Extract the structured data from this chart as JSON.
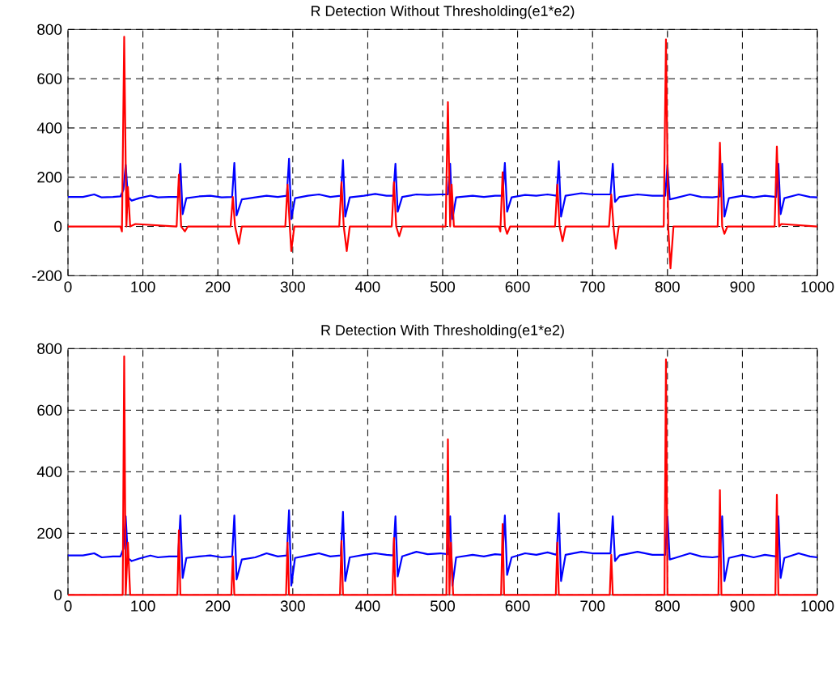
{
  "chart_data": [
    {
      "type": "line",
      "title": "R Detection Without Thresholding(e1*e2)",
      "xlim": [
        0,
        1000
      ],
      "ylim": [
        -200,
        800
      ],
      "xticks": [
        0,
        100,
        200,
        300,
        400,
        500,
        600,
        700,
        800,
        900,
        1000
      ],
      "yticks": [
        -200,
        0,
        200,
        400,
        600,
        800
      ],
      "grid": true,
      "series": [
        {
          "color": "#0000ff",
          "x": [
            0,
            20,
            35,
            45,
            60,
            70,
            74,
            77,
            80,
            85,
            95,
            110,
            120,
            135,
            147,
            150,
            153,
            158,
            175,
            190,
            205,
            219,
            222,
            225,
            232,
            250,
            265,
            280,
            292,
            295,
            298,
            303,
            320,
            335,
            350,
            364,
            367,
            370,
            376,
            395,
            410,
            425,
            434,
            437,
            440,
            446,
            465,
            480,
            497,
            507,
            510,
            513,
            518,
            540,
            555,
            570,
            580,
            583,
            586,
            592,
            610,
            625,
            640,
            652,
            655,
            658,
            664,
            685,
            700,
            715,
            724,
            727,
            730,
            736,
            760,
            780,
            797,
            800,
            803,
            810,
            830,
            845,
            860,
            870,
            873,
            876,
            882,
            900,
            915,
            930,
            945,
            948,
            951,
            956,
            975,
            990,
            1000
          ],
          "values": [
            120,
            120,
            130,
            118,
            120,
            122,
            150,
            250,
            120,
            105,
            115,
            125,
            118,
            120,
            120,
            255,
            50,
            115,
            122,
            125,
            118,
            120,
            258,
            45,
            110,
            118,
            125,
            120,
            125,
            275,
            30,
            115,
            125,
            130,
            120,
            125,
            270,
            40,
            118,
            125,
            132,
            125,
            125,
            255,
            60,
            120,
            130,
            128,
            130,
            130,
            255,
            30,
            118,
            125,
            120,
            125,
            125,
            258,
            60,
            118,
            128,
            125,
            130,
            125,
            265,
            40,
            125,
            135,
            130,
            130,
            130,
            255,
            100,
            120,
            130,
            125,
            125,
            250,
            110,
            115,
            130,
            120,
            118,
            122,
            255,
            40,
            115,
            125,
            118,
            125,
            120,
            255,
            50,
            115,
            130,
            120,
            118
          ]
        },
        {
          "color": "#ff0000",
          "x": [
            0,
            70,
            72,
            75,
            78,
            80,
            83,
            90,
            145,
            148,
            151,
            156,
            160,
            217,
            220,
            223,
            228,
            232,
            290,
            293,
            296,
            298,
            302,
            362,
            365,
            368,
            372,
            376,
            432,
            435,
            438,
            442,
            446,
            504,
            507,
            510,
            512,
            515,
            575,
            577,
            580,
            583,
            586,
            590,
            650,
            653,
            656,
            660,
            664,
            722,
            725,
            728,
            731,
            735,
            795,
            798,
            801,
            804,
            808,
            867,
            870,
            873,
            876,
            880,
            943,
            946,
            949,
            952,
            1000
          ],
          "values": [
            0,
            0,
            -20,
            770,
            0,
            160,
            0,
            10,
            0,
            210,
            0,
            -20,
            0,
            0,
            120,
            0,
            -70,
            0,
            0,
            170,
            0,
            -100,
            0,
            0,
            180,
            0,
            -100,
            0,
            0,
            180,
            0,
            -40,
            0,
            0,
            505,
            0,
            170,
            0,
            0,
            -20,
            220,
            0,
            -30,
            0,
            0,
            170,
            0,
            -60,
            0,
            0,
            130,
            0,
            -90,
            0,
            0,
            760,
            0,
            -170,
            0,
            0,
            340,
            0,
            -30,
            0,
            0,
            325,
            0,
            10,
            0
          ]
        }
      ]
    },
    {
      "type": "line",
      "title": "R Detection With Thresholding(e1*e2)",
      "xlim": [
        0,
        1000
      ],
      "ylim": [
        0,
        800
      ],
      "xticks": [
        0,
        100,
        200,
        300,
        400,
        500,
        600,
        700,
        800,
        900,
        1000
      ],
      "yticks": [
        0,
        200,
        400,
        600,
        800
      ],
      "grid": true,
      "series": [
        {
          "color": "#0000ff",
          "x": [
            0,
            20,
            35,
            45,
            60,
            70,
            74,
            77,
            80,
            85,
            95,
            110,
            120,
            135,
            147,
            150,
            153,
            158,
            175,
            190,
            205,
            219,
            222,
            225,
            232,
            250,
            265,
            280,
            292,
            295,
            298,
            303,
            320,
            335,
            350,
            364,
            367,
            370,
            376,
            395,
            410,
            425,
            434,
            437,
            440,
            446,
            465,
            480,
            497,
            507,
            510,
            513,
            518,
            540,
            555,
            570,
            580,
            583,
            586,
            592,
            610,
            625,
            640,
            652,
            655,
            658,
            664,
            685,
            700,
            715,
            724,
            727,
            730,
            736,
            760,
            780,
            797,
            800,
            803,
            810,
            830,
            845,
            860,
            870,
            873,
            876,
            882,
            900,
            915,
            930,
            945,
            948,
            951,
            956,
            975,
            990,
            1000
          ],
          "values": [
            128,
            128,
            135,
            122,
            125,
            125,
            150,
            255,
            120,
            110,
            118,
            128,
            122,
            125,
            125,
            258,
            55,
            120,
            125,
            128,
            122,
            125,
            258,
            50,
            115,
            122,
            135,
            125,
            128,
            275,
            30,
            120,
            128,
            135,
            125,
            128,
            270,
            45,
            122,
            130,
            135,
            130,
            128,
            255,
            60,
            125,
            140,
            132,
            135,
            132,
            255,
            30,
            122,
            130,
            125,
            132,
            130,
            258,
            65,
            122,
            135,
            130,
            138,
            130,
            265,
            45,
            130,
            140,
            135,
            135,
            135,
            255,
            110,
            128,
            140,
            130,
            130,
            255,
            115,
            120,
            135,
            125,
            122,
            125,
            255,
            45,
            120,
            130,
            122,
            130,
            125,
            255,
            55,
            120,
            135,
            125,
            122
          ]
        },
        {
          "color": "#ff0000",
          "x": [
            0,
            73,
            75,
            77,
            80,
            83,
            146,
            148,
            150,
            218,
            220,
            222,
            291,
            293,
            295,
            363,
            365,
            367,
            433,
            435,
            437,
            505,
            507,
            509,
            511,
            514,
            578,
            580,
            582,
            651,
            653,
            655,
            723,
            725,
            727,
            796,
            798,
            800,
            868,
            870,
            872,
            944,
            946,
            948,
            1000
          ],
          "values": [
            0,
            0,
            775,
            0,
            170,
            0,
            0,
            210,
            0,
            0,
            125,
            0,
            0,
            170,
            0,
            0,
            175,
            0,
            0,
            185,
            0,
            0,
            505,
            0,
            170,
            0,
            0,
            230,
            0,
            0,
            170,
            0,
            0,
            130,
            0,
            0,
            765,
            0,
            0,
            340,
            0,
            0,
            325,
            0,
            0
          ]
        }
      ]
    }
  ]
}
